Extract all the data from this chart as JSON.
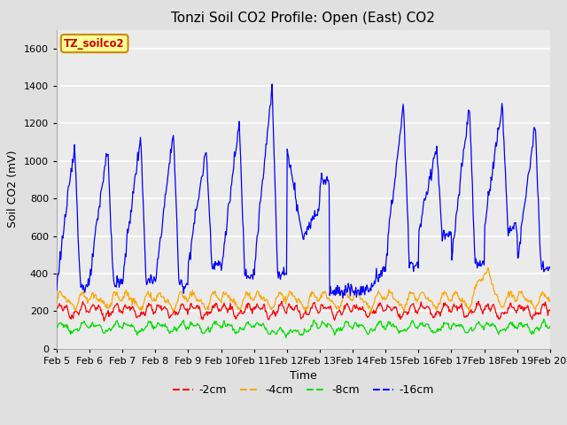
{
  "title": "Tonzi Soil CO2 Profile: Open (East) CO2",
  "ylabel": "Soil CO2 (mV)",
  "xlabel": "Time",
  "legend_label": "TZ_soilco2",
  "ylim": [
    0,
    1700
  ],
  "xlim": [
    0,
    15
  ],
  "fig_bg_color": "#e0e0e0",
  "plot_bg_color": "#ebebeb",
  "grid_color": "white",
  "xtick_labels": [
    "Feb 5",
    "Feb 6",
    "Feb 7",
    "Feb 8",
    "Feb 9",
    "Feb 10",
    "Feb 11",
    "Feb 12",
    "Feb 13",
    "Feb 14",
    "Feb 15",
    "Feb 16",
    "Feb 17",
    "Feb 18",
    "Feb 19",
    "Feb 20"
  ],
  "ytick_values": [
    0,
    200,
    400,
    600,
    800,
    1000,
    1200,
    1400,
    1600
  ],
  "colors": {
    "2cm": "#ff0000",
    "4cm": "#ffa500",
    "8cm": "#00dd00",
    "16cm": "#0000ff"
  },
  "legend_labels": [
    "-2cm",
    "-4cm",
    "-8cm",
    "-16cm"
  ],
  "legend_colors": [
    "#ff0000",
    "#ffa500",
    "#00dd00",
    "#0000ff"
  ],
  "legend_box_facecolor": "#ffff99",
  "legend_box_edgecolor": "#cc8800",
  "legend_text_color": "#cc0000",
  "title_fontsize": 11,
  "axis_label_fontsize": 9,
  "tick_fontsize": 8
}
